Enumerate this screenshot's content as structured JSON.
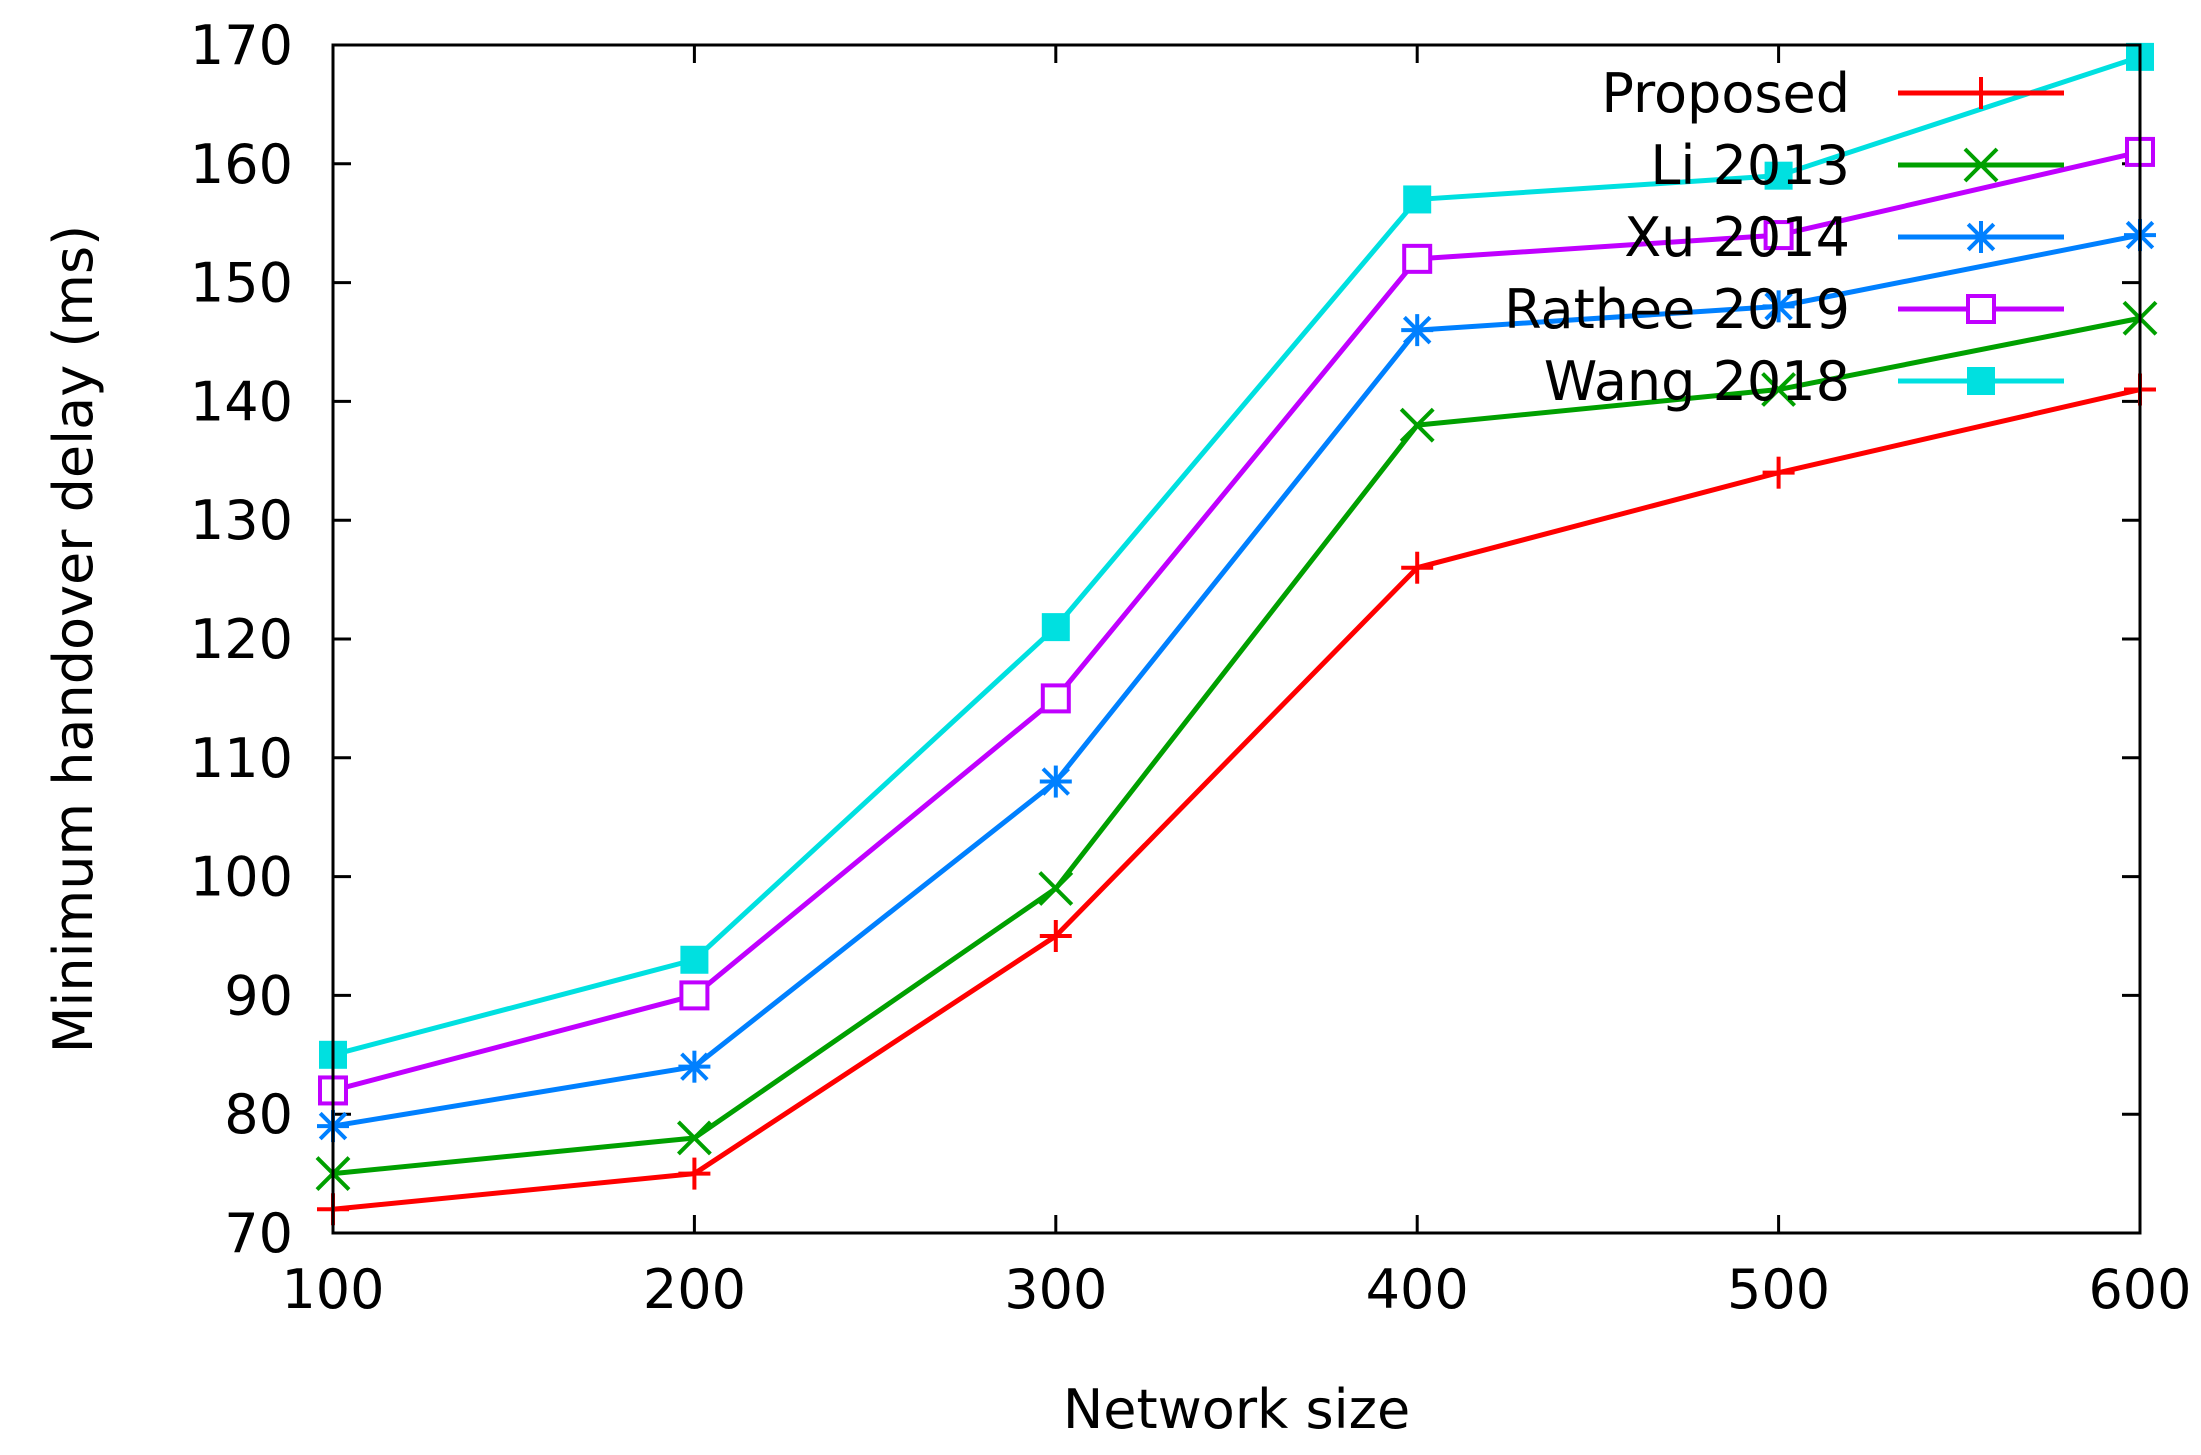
{
  "chart_data": {
    "type": "line",
    "title": "",
    "xlabel": "Network size",
    "ylabel": "Minimum handover delay (ms)",
    "x": [
      100,
      200,
      300,
      400,
      500,
      600
    ],
    "xlim": [
      100,
      600
    ],
    "ylim": [
      70,
      170
    ],
    "xticks": [
      100,
      200,
      300,
      400,
      500,
      600
    ],
    "yticks": [
      70,
      80,
      90,
      100,
      110,
      120,
      130,
      140,
      150,
      160,
      170
    ],
    "grid": false,
    "legend_position": "top-right",
    "series": [
      {
        "name": "Proposed",
        "color": "#ff0000",
        "marker": "plus",
        "values": [
          72,
          75,
          95,
          126,
          134,
          141
        ]
      },
      {
        "name": "Li 2013",
        "color": "#00a000",
        "marker": "cross",
        "values": [
          75,
          78,
          99,
          138,
          141,
          147
        ]
      },
      {
        "name": "Xu 2014",
        "color": "#0080ff",
        "marker": "star",
        "values": [
          79,
          84,
          108,
          146,
          148,
          154
        ]
      },
      {
        "name": "Rathee 2019",
        "color": "#c000ff",
        "marker": "square-open",
        "values": [
          82,
          90,
          115,
          152,
          154,
          161
        ]
      },
      {
        "name": "Wang 2018",
        "color": "#00e0e0",
        "marker": "square-filled",
        "values": [
          85,
          93,
          121,
          157,
          159,
          169
        ]
      }
    ]
  }
}
